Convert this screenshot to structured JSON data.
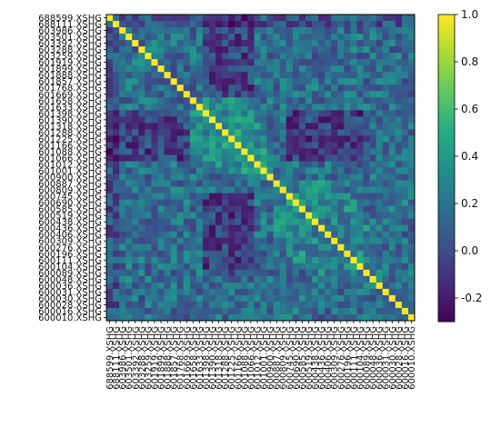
{
  "chart_data": {
    "type": "heatmap",
    "title": "",
    "xlabel": "",
    "ylabel": "",
    "labels_note": "Labels read top-to-bottom (y) and left-to-right (x); 48 securities. Some middle labels are unreadable due to overlap and are partially reconstructed.",
    "labels": [
      "688599.XSHG",
      "688111.XSHG",
      "603986.XSHG",
      "603501.XSHG",
      "603392.XSHG",
      "603288.XSHG",
      "603259.XSHG",
      "601919.XSHG",
      "601899.XSHG",
      "601888.XSHG",
      "601857.XSHG",
      "601768.XSHG",
      "601669.XSHG",
      "601658.XSHG",
      "601633.XSHG",
      "601398.XSHG",
      "601390.XSHG",
      "601318.XSHG",
      "601288.XSHG",
      "601225.XSHG",
      "601166.XSHG",
      "601088.XSHG",
      "601066.XSHG",
      "601012.XSHG",
      "601001.XSHG",
      "600900.XSHG",
      "600887.XSHG",
      "600809.XSHG",
      "600745.XSHG",
      "600690.XSHG",
      "600585.XSHG",
      "600519.XSHG",
      "600438.XSHG",
      "600436.XSHG",
      "600406.XSHG",
      "600309.XSHG",
      "600276.XSHG",
      "600196.XSHG",
      "600111.XSHG",
      "600104.XSHG",
      "600089.XSHG",
      "600048.XSHG",
      "600036.XSHG",
      "600031.XSHG",
      "600030.XSHG",
      "600028.XSHG",
      "600016.XSHG",
      "600010.XSHG"
    ],
    "vmin": -0.3,
    "vmax": 1.0,
    "colormap": "viridis",
    "colorbar_ticks": [
      "-0.2",
      "0.0",
      "0.2",
      "0.4",
      "0.6",
      "0.8",
      "1.0"
    ],
    "colorbar_values": [
      -0.2,
      0.0,
      0.2,
      0.4,
      0.6,
      0.8,
      1.0
    ],
    "diagonal_value": 1.0,
    "typical_off_diagonal_range": [
      -0.3,
      0.6
    ],
    "legend_position": "right"
  }
}
